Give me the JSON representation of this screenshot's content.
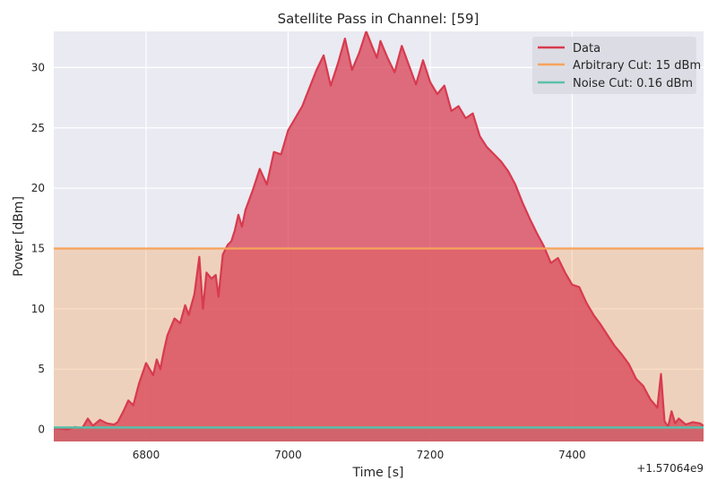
{
  "chart_data": {
    "type": "area",
    "title": "Satellite Pass in Channel: [59]",
    "xlabel": "Time [s]",
    "ylabel": "Power [dBm]",
    "x_offset_label": "+1.57064e9",
    "xlim": [
      6670,
      7585
    ],
    "ylim": [
      -1,
      33
    ],
    "x_ticks": [
      6800,
      7000,
      7200,
      7400
    ],
    "y_ticks": [
      0,
      5,
      10,
      15,
      20,
      25,
      30
    ],
    "grid": true,
    "legend_position": "top-right",
    "series": [
      {
        "name": "Data",
        "color": "#d83a4e",
        "x": [
          6670,
          6690,
          6700,
          6710,
          6718,
          6725,
          6735,
          6745,
          6755,
          6760,
          6768,
          6775,
          6782,
          6790,
          6800,
          6810,
          6815,
          6820,
          6825,
          6830,
          6835,
          6840,
          6848,
          6855,
          6860,
          6868,
          6875,
          6880,
          6885,
          6892,
          6898,
          6902,
          6908,
          6915,
          6920,
          6925,
          6930,
          6935,
          6940,
          6950,
          6960,
          6970,
          6980,
          6990,
          7000,
          7010,
          7020,
          7030,
          7040,
          7050,
          7060,
          7070,
          7080,
          7090,
          7100,
          7110,
          7118,
          7125,
          7130,
          7140,
          7150,
          7160,
          7170,
          7180,
          7190,
          7200,
          7210,
          7220,
          7230,
          7240,
          7250,
          7260,
          7270,
          7280,
          7290,
          7300,
          7310,
          7320,
          7330,
          7340,
          7350,
          7360,
          7370,
          7380,
          7390,
          7400,
          7410,
          7420,
          7430,
          7440,
          7450,
          7460,
          7470,
          7480,
          7490,
          7500,
          7510,
          7520,
          7525,
          7530,
          7535,
          7540,
          7545,
          7550,
          7560,
          7570,
          7580,
          7585
        ],
        "values": [
          0.1,
          0.0,
          0.2,
          0.1,
          0.9,
          0.3,
          0.8,
          0.5,
          0.4,
          0.6,
          1.5,
          2.4,
          2.0,
          3.8,
          5.5,
          4.5,
          5.8,
          5.0,
          6.5,
          7.8,
          8.5,
          9.2,
          8.8,
          10.3,
          9.5,
          11.2,
          14.3,
          10.0,
          13.0,
          12.5,
          12.8,
          11.0,
          14.5,
          15.3,
          15.6,
          16.5,
          17.8,
          16.8,
          18.2,
          19.8,
          21.6,
          20.3,
          23.0,
          22.8,
          24.8,
          25.8,
          26.8,
          28.3,
          29.8,
          31.0,
          28.5,
          30.3,
          32.4,
          29.8,
          31.2,
          33.0,
          31.8,
          30.8,
          32.2,
          30.8,
          29.6,
          31.8,
          30.2,
          28.6,
          30.6,
          28.8,
          27.8,
          28.5,
          26.4,
          26.8,
          25.8,
          26.2,
          24.3,
          23.4,
          22.8,
          22.2,
          21.4,
          20.3,
          18.8,
          17.5,
          16.3,
          15.2,
          13.8,
          14.2,
          13.0,
          12.0,
          11.8,
          10.5,
          9.5,
          8.7,
          7.8,
          6.9,
          6.2,
          5.4,
          4.2,
          3.6,
          2.5,
          1.8,
          4.6,
          0.7,
          0.2,
          1.5,
          0.5,
          0.9,
          0.4,
          0.6,
          0.5,
          0.3
        ]
      },
      {
        "name": "Arbitrary Cut: 15 dBm",
        "color": "#f7a35c",
        "value": 15
      },
      {
        "name": "Noise Cut: 0.16 dBm",
        "color": "#5bbfa9",
        "value": 0.16
      }
    ]
  }
}
